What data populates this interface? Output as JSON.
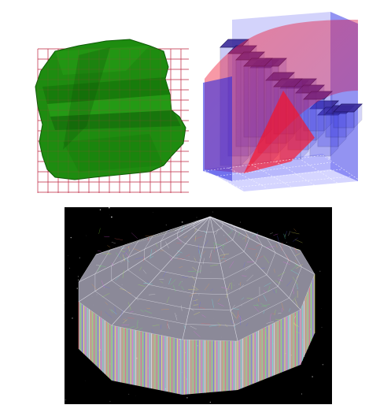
{
  "figure": {
    "panels": [
      {
        "id": "voxel-mesh-grid",
        "shape_color": "#1e8c10",
        "shape_dark_color": "#0f5a08",
        "grid_color": "#c0304a"
      },
      {
        "id": "stacked-bars-surface",
        "bar_top_color": "#3a2a9a",
        "bar_side_color": "#4040e0",
        "surface_color": "#e0202a"
      },
      {
        "id": "wireframe-terrain",
        "background_color": "#000000",
        "wire_color": "#e8e8f0"
      }
    ]
  }
}
